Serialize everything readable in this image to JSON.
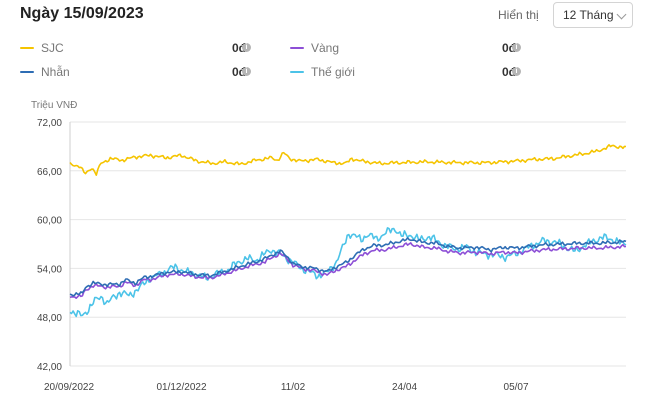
{
  "header": {
    "title": "Ngày 15/09/2023",
    "range_label": "Hiển thị",
    "range_value": "12 Tháng"
  },
  "legend": [
    {
      "name": "SJC",
      "value": "0đ",
      "color": "#f5c400"
    },
    {
      "name": "Vàng",
      "value": "0đ",
      "color": "#8d4fd6"
    },
    {
      "name": "Nhẫn",
      "value": "0đ",
      "color": "#2e6db4"
    },
    {
      "name": "Thế giới",
      "value": "0đ",
      "color": "#4cc3e8"
    }
  ],
  "chart_data": {
    "type": "line",
    "ylabel": "Triệu VNĐ",
    "ylim": [
      42,
      72
    ],
    "yticks": [
      "72,00",
      "66,00",
      "60,00",
      "54,00",
      "48,00",
      "42,00"
    ],
    "ytick_values": [
      72,
      66,
      60,
      54,
      48,
      42
    ],
    "xtick_labels": [
      "20/09/2022",
      "01/12/2022",
      "11/02",
      "24/04",
      "05/07"
    ],
    "xtick_index": [
      0,
      72,
      144,
      216,
      288
    ],
    "x_count": 360,
    "grid": true,
    "series": [
      {
        "name": "SJC",
        "color": "#f5c400",
        "keypoints": [
          [
            0,
            66.8
          ],
          [
            6,
            66.6
          ],
          [
            10,
            65.6
          ],
          [
            14,
            66.4
          ],
          [
            17,
            65.6
          ],
          [
            20,
            66.9
          ],
          [
            26,
            67.5
          ],
          [
            34,
            67.3
          ],
          [
            42,
            67.7
          ],
          [
            52,
            67.9
          ],
          [
            62,
            67.6
          ],
          [
            72,
            67.9
          ],
          [
            82,
            67.2
          ],
          [
            92,
            66.9
          ],
          [
            100,
            67.1
          ],
          [
            110,
            66.8
          ],
          [
            120,
            67.3
          ],
          [
            130,
            67.6
          ],
          [
            134,
            67.3
          ],
          [
            138,
            68.2
          ],
          [
            142,
            67.5
          ],
          [
            148,
            67.2
          ],
          [
            160,
            67.4
          ],
          [
            170,
            67.0
          ],
          [
            178,
            66.9
          ],
          [
            182,
            67.5
          ],
          [
            188,
            67.2
          ],
          [
            200,
            66.9
          ],
          [
            212,
            67.0
          ],
          [
            230,
            67.1
          ],
          [
            250,
            67.0
          ],
          [
            270,
            67.0
          ],
          [
            288,
            67.2
          ],
          [
            300,
            67.4
          ],
          [
            312,
            67.5
          ],
          [
            322,
            67.8
          ],
          [
            332,
            68.1
          ],
          [
            340,
            68.4
          ],
          [
            346,
            68.8
          ],
          [
            350,
            69.1
          ],
          [
            356,
            68.9
          ],
          [
            359,
            68.8
          ]
        ]
      },
      {
        "name": "Vàng",
        "color": "#8d4fd6",
        "keypoints": [
          [
            0,
            50.5
          ],
          [
            8,
            50.6
          ],
          [
            10,
            51.3
          ],
          [
            15,
            51.9
          ],
          [
            24,
            51.7
          ],
          [
            32,
            51.8
          ],
          [
            36,
            52.3
          ],
          [
            42,
            51.9
          ],
          [
            48,
            52.6
          ],
          [
            54,
            52.7
          ],
          [
            62,
            53.2
          ],
          [
            72,
            53.3
          ],
          [
            80,
            53.0
          ],
          [
            90,
            52.8
          ],
          [
            98,
            53.2
          ],
          [
            106,
            53.7
          ],
          [
            114,
            54.2
          ],
          [
            120,
            54.5
          ],
          [
            126,
            54.8
          ],
          [
            132,
            55.5
          ],
          [
            136,
            55.8
          ],
          [
            140,
            55.2
          ],
          [
            144,
            54.4
          ],
          [
            150,
            54.0
          ],
          [
            158,
            53.7
          ],
          [
            166,
            53.2
          ],
          [
            172,
            53.8
          ],
          [
            178,
            54.2
          ],
          [
            184,
            55.0
          ],
          [
            190,
            55.8
          ],
          [
            196,
            56.2
          ],
          [
            204,
            56.3
          ],
          [
            212,
            56.7
          ],
          [
            220,
            57.0
          ],
          [
            228,
            56.6
          ],
          [
            236,
            56.5
          ],
          [
            244,
            56.1
          ],
          [
            252,
            55.9
          ],
          [
            262,
            56.0
          ],
          [
            272,
            55.8
          ],
          [
            280,
            56.0
          ],
          [
            288,
            55.9
          ],
          [
            296,
            56.1
          ],
          [
            306,
            56.3
          ],
          [
            318,
            56.4
          ],
          [
            330,
            56.5
          ],
          [
            342,
            56.5
          ],
          [
            352,
            56.6
          ],
          [
            359,
            56.7
          ]
        ]
      },
      {
        "name": "Nhẫn",
        "color": "#2e6db4",
        "keypoints": [
          [
            0,
            50.8
          ],
          [
            8,
            50.9
          ],
          [
            10,
            51.7
          ],
          [
            15,
            52.2
          ],
          [
            24,
            52.0
          ],
          [
            32,
            52.1
          ],
          [
            36,
            52.6
          ],
          [
            42,
            52.2
          ],
          [
            48,
            52.9
          ],
          [
            54,
            53.1
          ],
          [
            62,
            53.5
          ],
          [
            72,
            53.6
          ],
          [
            80,
            53.3
          ],
          [
            90,
            53.1
          ],
          [
            98,
            53.5
          ],
          [
            106,
            54.0
          ],
          [
            114,
            54.5
          ],
          [
            120,
            54.8
          ],
          [
            126,
            55.2
          ],
          [
            132,
            55.8
          ],
          [
            136,
            56.1
          ],
          [
            140,
            55.5
          ],
          [
            144,
            54.6
          ],
          [
            150,
            54.2
          ],
          [
            158,
            54.0
          ],
          [
            166,
            53.6
          ],
          [
            172,
            54.2
          ],
          [
            178,
            54.7
          ],
          [
            184,
            55.6
          ],
          [
            190,
            56.4
          ],
          [
            196,
            56.8
          ],
          [
            204,
            56.9
          ],
          [
            212,
            57.3
          ],
          [
            220,
            57.6
          ],
          [
            228,
            57.2
          ],
          [
            236,
            57.1
          ],
          [
            244,
            56.7
          ],
          [
            252,
            56.5
          ],
          [
            262,
            56.6
          ],
          [
            272,
            56.3
          ],
          [
            280,
            56.6
          ],
          [
            288,
            56.5
          ],
          [
            296,
            56.7
          ],
          [
            306,
            56.9
          ],
          [
            318,
            57.0
          ],
          [
            330,
            57.1
          ],
          [
            342,
            57.1
          ],
          [
            352,
            57.2
          ],
          [
            359,
            57.3
          ]
        ]
      },
      {
        "name": "Thế giới",
        "color": "#4cc3e8",
        "keypoints": [
          [
            0,
            48.9
          ],
          [
            4,
            48.4
          ],
          [
            8,
            48.2
          ],
          [
            12,
            49.0
          ],
          [
            16,
            50.0
          ],
          [
            20,
            50.6
          ],
          [
            24,
            49.6
          ],
          [
            28,
            50.5
          ],
          [
            32,
            51.0
          ],
          [
            38,
            50.7
          ],
          [
            44,
            51.4
          ],
          [
            50,
            52.6
          ],
          [
            56,
            53.1
          ],
          [
            62,
            53.7
          ],
          [
            68,
            54.2
          ],
          [
            74,
            53.6
          ],
          [
            80,
            53.3
          ],
          [
            88,
            52.8
          ],
          [
            96,
            53.4
          ],
          [
            102,
            53.8
          ],
          [
            108,
            54.7
          ],
          [
            114,
            55.2
          ],
          [
            120,
            55.0
          ],
          [
            126,
            55.8
          ],
          [
            130,
            56.3
          ],
          [
            136,
            55.7
          ],
          [
            142,
            55.0
          ],
          [
            148,
            54.2
          ],
          [
            154,
            53.6
          ],
          [
            160,
            53.1
          ],
          [
            166,
            53.5
          ],
          [
            172,
            54.8
          ],
          [
            176,
            56.5
          ],
          [
            180,
            58.3
          ],
          [
            184,
            58.0
          ],
          [
            188,
            57.5
          ],
          [
            192,
            58.2
          ],
          [
            198,
            57.6
          ],
          [
            204,
            58.4
          ],
          [
            210,
            58.9
          ],
          [
            214,
            58.0
          ],
          [
            220,
            58.1
          ],
          [
            226,
            57.5
          ],
          [
            232,
            57.9
          ],
          [
            240,
            57.0
          ],
          [
            248,
            56.4
          ],
          [
            256,
            56.6
          ],
          [
            262,
            56.0
          ],
          [
            268,
            55.8
          ],
          [
            276,
            55.6
          ],
          [
            282,
            55.4
          ],
          [
            290,
            56.0
          ],
          [
            298,
            56.8
          ],
          [
            306,
            57.4
          ],
          [
            314,
            57.2
          ],
          [
            320,
            56.6
          ],
          [
            326,
            56.1
          ],
          [
            332,
            56.8
          ],
          [
            338,
            57.4
          ],
          [
            344,
            57.8
          ],
          [
            350,
            57.6
          ],
          [
            356,
            57.0
          ],
          [
            359,
            57.2
          ]
        ]
      }
    ]
  }
}
